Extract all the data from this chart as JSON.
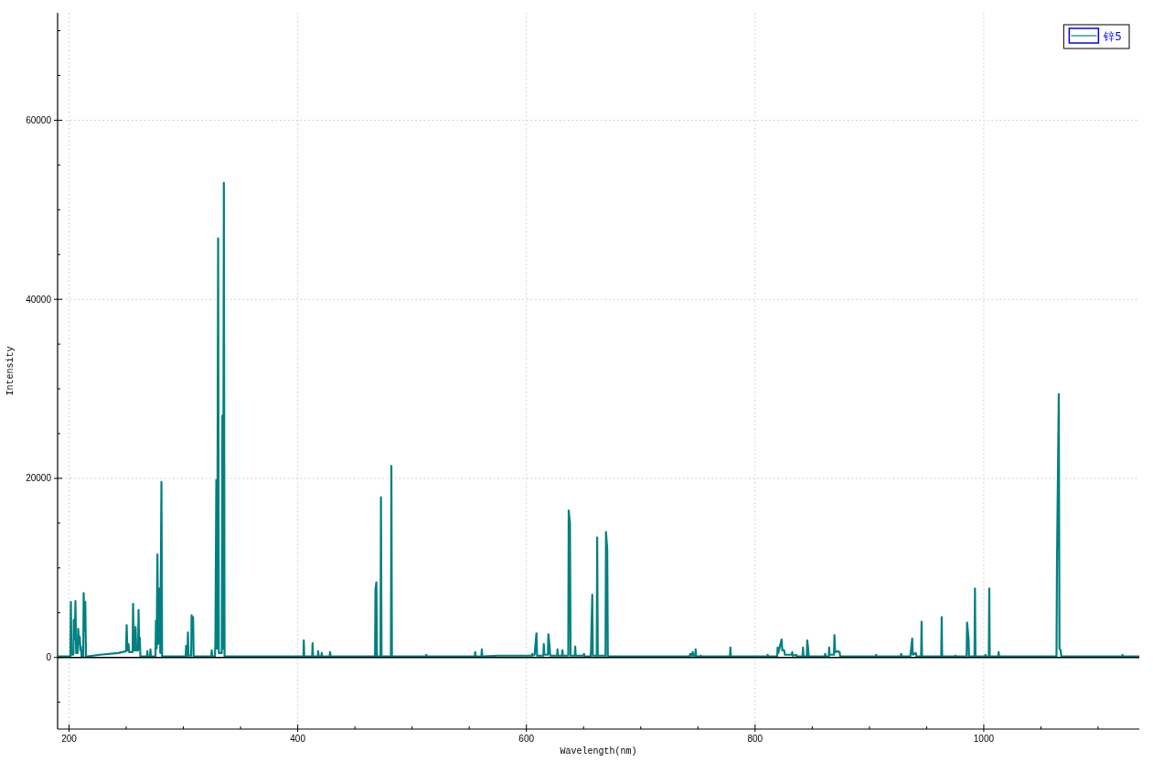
{
  "chart_data": {
    "type": "line",
    "xlabel": "Wavelength(nm)",
    "ylabel": "Intensity",
    "xlim": [
      190,
      1136
    ],
    "ylim": [
      -8000,
      72000
    ],
    "xticks": [
      200,
      {
        "value": 250,
        "label": null
      },
      {
        "value": 300,
        "label": null
      },
      {
        "value": 350,
        "label": null
      },
      400,
      {
        "value": 450,
        "label": null
      },
      {
        "value": 500,
        "label": null
      },
      {
        "value": 550,
        "label": null
      },
      600,
      {
        "value": 650,
        "label": null
      },
      {
        "value": 700,
        "label": null
      },
      {
        "value": 750,
        "label": null
      },
      800,
      {
        "value": 850,
        "label": null
      },
      {
        "value": 900,
        "label": null
      },
      {
        "value": 950,
        "label": null
      },
      1000,
      {
        "value": 1050,
        "label": null
      },
      {
        "value": 1100,
        "label": null
      }
    ],
    "yticks": [
      {
        "value": -5000,
        "label": null
      },
      0,
      {
        "value": 5000,
        "label": null
      },
      {
        "value": 10000,
        "label": null
      },
      {
        "value": 15000,
        "label": null
      },
      20000,
      {
        "value": 25000,
        "label": null
      },
      {
        "value": 30000,
        "label": null
      },
      {
        "value": 35000,
        "label": null
      },
      40000,
      {
        "value": 45000,
        "label": null
      },
      {
        "value": 50000,
        "label": null
      },
      {
        "value": 55000,
        "label": null
      },
      60000,
      {
        "value": 65000,
        "label": null
      },
      {
        "value": 70000,
        "label": null
      }
    ],
    "grid": true,
    "legend": "top right",
    "marker": "none",
    "line_style": "solid",
    "ref_lines": [
      {
        "axis": "y",
        "value": 0,
        "color": "#000000"
      }
    ],
    "series": [
      {
        "name": "锌5",
        "color": "#008080",
        "x": [
          190,
          201.2,
          201.6,
          202.1,
          203.8,
          204.2,
          205.0,
          205.6,
          206.2,
          207.6,
          208.0,
          208.8,
          209.4,
          210.0,
          210.4,
          211.0,
          212.4,
          212.8,
          213.6,
          214.2,
          214.8,
          227,
          243,
          249.9,
          250.4,
          251.0,
          251.6,
          252.0,
          252.6,
          255.6,
          256.0,
          256.6,
          257.8,
          258.2,
          258.8,
          260.4,
          260.8,
          261.3,
          261.9,
          262.4,
          268.1,
          268.5,
          268.9,
          270.8,
          271.2,
          271.6,
          275.6,
          276.0,
          276.6,
          277.3,
          277.9,
          279.2,
          279.8,
          280.8,
          281.4,
          302.0,
          302.4,
          302.9,
          303.6,
          304.0,
          304.5,
          306.8,
          307.2,
          307.8,
          308.5,
          309.0,
          324.4,
          324.8,
          325.2,
          327.6,
          328.0,
          328.8,
          329.5,
          330.4,
          331.0,
          333.6,
          334.1,
          334.7,
          335.4,
          336.0,
          405.0,
          405.3,
          405.7,
          412.6,
          413.0,
          413.4,
          417.5,
          417.9,
          418.3,
          420.6,
          421.0,
          421.4,
          427.9,
          428.3,
          428.7,
          467.6,
          468.0,
          468.8,
          469.3,
          472.4,
          472.8,
          473.3,
          481.5,
          481.9,
          482.4,
          512.1,
          512.5,
          512.9,
          554.8,
          555.2,
          555.6,
          560.6,
          561.0,
          561.4,
          575,
          604.6,
          605.0,
          605.4,
          607.2,
          607.6,
          608.8,
          609.3,
          614.8,
          615.2,
          615.7,
          618.8,
          619.2,
          620.3,
          620.8,
          626.8,
          627.2,
          627.6,
          631.1,
          631.5,
          631.9,
          636.6,
          637.0,
          638.1,
          638.6,
          642.3,
          642.7,
          643.1,
          650.0,
          650.4,
          650.8,
          656.1,
          656.5,
          657.6,
          658.1,
          661.5,
          661.9,
          662.4,
          669.2,
          669.6,
          670.7,
          671.2,
          742.8,
          743.2,
          744.6,
          745.4,
          746.0,
          747.6,
          748.0,
          748.5,
          752.1,
          752.5,
          752.9,
          778.0,
          778.4,
          778.8,
          810.6,
          811.0,
          811.4,
          819.3,
          819.7,
          820.3,
          823.2,
          823.8,
          825.4,
          826.0,
          832.1,
          832.5,
          832.9,
          836.0,
          836.5,
          841.5,
          841.9,
          842.4,
          845.2,
          845.6,
          846.4,
          846.9,
          860.9,
          861.3,
          861.7,
          864.4,
          864.8,
          865.2,
          869.0,
          869.4,
          870.0,
          872.6,
          873.9,
          874.4,
          905.5,
          905.9,
          906.3,
          927.4,
          927.8,
          928.2,
          935.6,
          936.0,
          937.4,
          937.9,
          940.6,
          941.0,
          945.2,
          945.6,
          946.0,
          962.8,
          963.2,
          963.6,
          974.8,
          975.2,
          975.6,
          985.0,
          985.4,
          986.7,
          987.1,
          991.9,
          992.3,
          992.7,
          1001.0,
          1001.4,
          1001.8,
          1004.4,
          1004.8,
          1005.2,
          1012.6,
          1013.0,
          1013.4,
          1063.6,
          1064.0,
          1065.6,
          1066.2,
          1067.2,
          1067.8,
          1121.0,
          1121.4,
          1121.8,
          1136
        ],
        "values": [
          100,
          100,
          6200,
          300,
          300,
          4200,
          2000,
          6300,
          500,
          500,
          3200,
          1500,
          2300,
          800,
          1200,
          100,
          100,
          7200,
          3000,
          6200,
          100,
          300,
          500,
          700,
          3600,
          800,
          800,
          1500,
          600,
          600,
          6000,
          800,
          800,
          3400,
          800,
          800,
          5300,
          1500,
          2200,
          100,
          100,
          700,
          100,
          100,
          900,
          100,
          100,
          4100,
          1000,
          11500,
          1500,
          7700,
          500,
          19600,
          100,
          100,
          1300,
          200,
          200,
          2800,
          200,
          200,
          4700,
          3000,
          4500,
          100,
          100,
          800,
          100,
          100,
          1700,
          19800,
          1000,
          46800,
          500,
          500,
          27000,
          1000,
          53000,
          100,
          100,
          1900,
          100,
          100,
          1600,
          100,
          100,
          700,
          100,
          100,
          500,
          100,
          100,
          600,
          100,
          100,
          7600,
          8400,
          100,
          100,
          17900,
          100,
          100,
          21400,
          100,
          100,
          300,
          100,
          100,
          600,
          100,
          100,
          900,
          100,
          200,
          200,
          400,
          200,
          300,
          1000,
          2700,
          200,
          200,
          1500,
          300,
          300,
          2600,
          1200,
          200,
          200,
          900,
          200,
          200,
          800,
          200,
          200,
          16400,
          15000,
          200,
          200,
          1200,
          200,
          200,
          400,
          100,
          100,
          800,
          7000,
          200,
          200,
          13400,
          200,
          200,
          14000,
          12100,
          100,
          100,
          400,
          200,
          600,
          200,
          200,
          900,
          100,
          100,
          200,
          100,
          100,
          1100,
          100,
          100,
          300,
          100,
          100,
          1100,
          500,
          2000,
          800,
          800,
          300,
          300,
          600,
          200,
          300,
          100,
          100,
          1100,
          100,
          100,
          1900,
          1000,
          100,
          100,
          400,
          100,
          100,
          1100,
          300,
          300,
          2500,
          600,
          700,
          600,
          100,
          100,
          300,
          100,
          100,
          400,
          100,
          100,
          400,
          2100,
          300,
          500,
          100,
          100,
          4000,
          100,
          100,
          4500,
          100,
          100,
          200,
          100,
          100,
          3900,
          2100,
          100,
          100,
          7700,
          100,
          100,
          300,
          100,
          100,
          7700,
          100,
          100,
          600,
          100,
          100,
          10200,
          29400,
          1000,
          800,
          100,
          100,
          300,
          100,
          100
        ]
      }
    ]
  }
}
